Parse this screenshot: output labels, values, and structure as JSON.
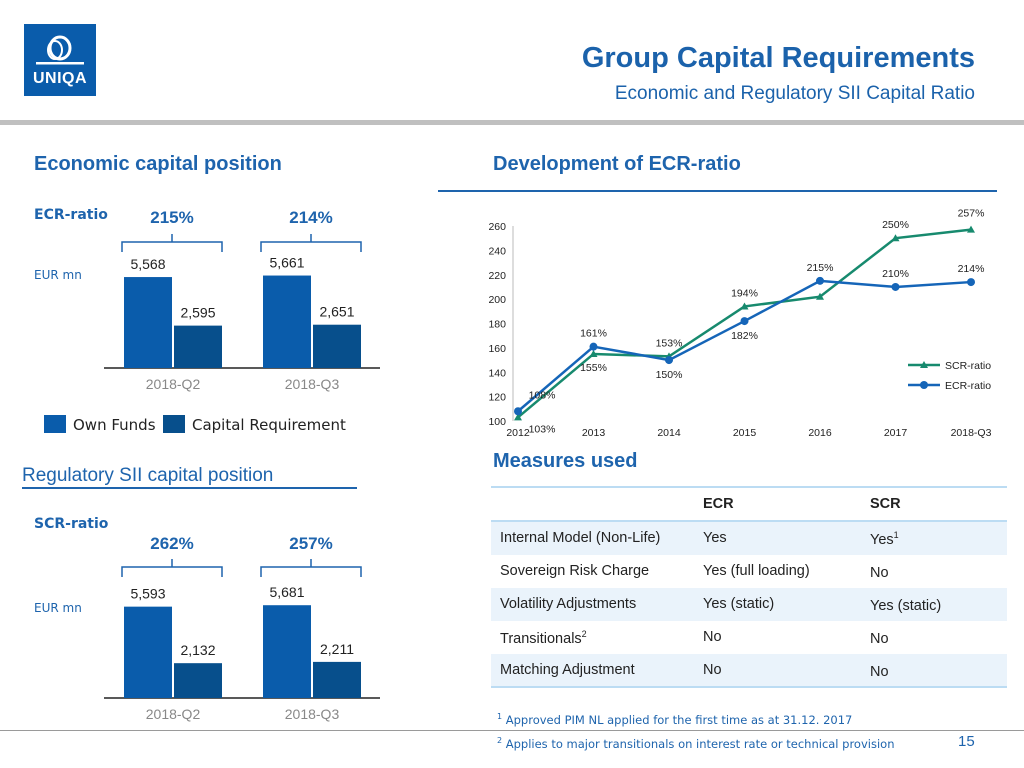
{
  "header": {
    "logo_text": "UNIQA",
    "title": "Group Capital Requirements",
    "subtitle": "Economic and Regulatory SII Capital Ratio"
  },
  "colors": {
    "own_funds": "#0a5cab",
    "capital_requirement": "#074f8c",
    "scr_line": "#178a6e",
    "ecr_line": "#1565b8",
    "accent": "#1e64ad"
  },
  "economic": {
    "heading": "Economic capital position",
    "ratio_label": "ECR-ratio",
    "unit": "EUR mn"
  },
  "regulatory": {
    "heading": "Regulatory SII capital position",
    "ratio_label": "SCR-ratio",
    "unit": "EUR mn"
  },
  "legend": {
    "own_funds": "Own Funds",
    "capital_requirement": "Capital Requirement"
  },
  "line_heading": "Development of ECR-ratio",
  "chart_data": [
    {
      "type": "bar",
      "categories": [
        "2018-Q2",
        "2018-Q3"
      ],
      "series": [
        {
          "name": "Own Funds",
          "values": [
            5568,
            5661
          ],
          "labels": [
            "5,568",
            "5,661"
          ]
        },
        {
          "name": "Capital Requirement",
          "values": [
            2595,
            2651
          ],
          "labels": [
            "2,595",
            "2,651"
          ]
        }
      ],
      "ratios": [
        "215%",
        "214%"
      ],
      "ylim": [
        0,
        6000
      ]
    },
    {
      "type": "bar",
      "categories": [
        "2018-Q2",
        "2018-Q3"
      ],
      "series": [
        {
          "name": "Own Funds",
          "values": [
            5593,
            5681
          ],
          "labels": [
            "5,593",
            "5,681"
          ]
        },
        {
          "name": "Capital Requirement",
          "values": [
            2132,
            2211
          ],
          "labels": [
            "2,132",
            "2,211"
          ]
        }
      ],
      "ratios": [
        "262%",
        "257%"
      ],
      "ylim": [
        0,
        6000
      ]
    },
    {
      "type": "line",
      "categories": [
        "2012",
        "2013",
        "2014",
        "2015",
        "2016",
        "2017",
        "2018-Q3"
      ],
      "ylim": [
        100,
        260
      ],
      "yticks": [
        "100",
        "120",
        "140",
        "160",
        "180",
        "200",
        "220",
        "240",
        "260"
      ],
      "grid": false,
      "legend": "right",
      "series": [
        {
          "name": "SCR-ratio",
          "values": [
            103,
            155,
            153,
            194,
            202,
            250,
            257
          ],
          "labels": [
            "103%",
            "155%",
            "153%",
            "194%",
            "",
            "250%",
            "257%"
          ]
        },
        {
          "name": "ECR-ratio",
          "values": [
            108,
            161,
            150,
            182,
            215,
            210,
            214
          ],
          "labels": [
            "108%",
            "161%",
            "150%",
            "182%",
            "215%",
            "210%",
            "214%"
          ]
        }
      ]
    }
  ],
  "measures": {
    "heading": "Measures used",
    "columns": [
      "",
      "ECR",
      "SCR"
    ],
    "rows": [
      [
        "Internal Model (Non-Life)",
        "Yes",
        "Yes",
        "1"
      ],
      [
        "Sovereign Risk Charge",
        "Yes (full loading)",
        "No",
        ""
      ],
      [
        "Volatility Adjustments",
        "Yes (static)",
        "Yes (static)",
        ""
      ],
      [
        "Transitionals",
        "No",
        "No",
        ""
      ],
      [
        "Matching Adjustment",
        "No",
        "No",
        ""
      ]
    ],
    "transitionals_sup": "2"
  },
  "footnotes": [
    {
      "mark": "1",
      "text": "Approved PIM NL applied for the first time as at 31.12. 2017"
    },
    {
      "mark": "2",
      "text": "Applies to major transitionals on interest rate or technical provision"
    }
  ],
  "page_number": "15"
}
